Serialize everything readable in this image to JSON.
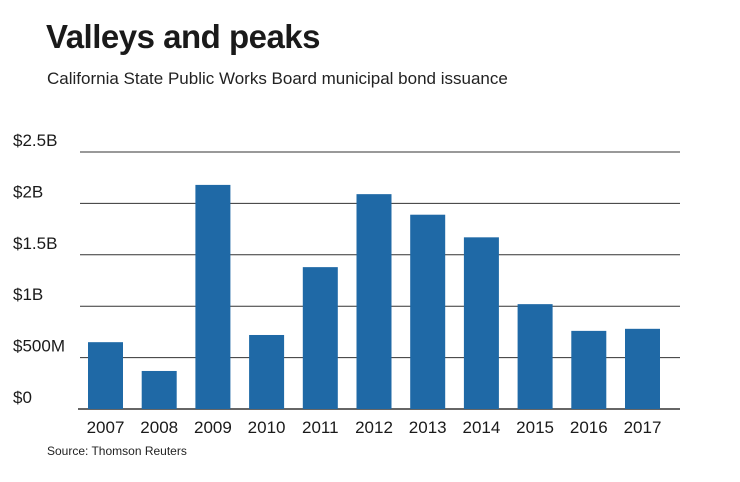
{
  "header": {
    "title": "Valleys and peaks",
    "subtitle": "California State Public Works Board municipal bond issuance"
  },
  "footer": {
    "source": "Source: Thomson Reuters"
  },
  "colors": {
    "bar": "#1f69a6",
    "grid": "#333333",
    "text": "#1a1a1a"
  },
  "chart_data": {
    "type": "bar",
    "title": "Valleys and peaks",
    "subtitle": "California State Public Works Board municipal bond issuance",
    "xlabel": "",
    "ylabel": "",
    "categories": [
      "2007",
      "2008",
      "2009",
      "2010",
      "2011",
      "2012",
      "2013",
      "2014",
      "2015",
      "2016",
      "2017"
    ],
    "values": [
      0.65,
      0.37,
      2.18,
      0.72,
      1.38,
      2.09,
      1.89,
      1.67,
      1.02,
      0.76,
      0.78
    ],
    "unit": "billions of dollars",
    "ylim": [
      0,
      2.5
    ],
    "yticks": [
      {
        "value": 2.5,
        "label": "$2.5B"
      },
      {
        "value": 2.0,
        "label": "$2B"
      },
      {
        "value": 1.5,
        "label": "$1.5B"
      },
      {
        "value": 1.0,
        "label": "$1B"
      },
      {
        "value": 0.5,
        "label": "$500M"
      },
      {
        "value": 0.0,
        "label": "$0"
      }
    ],
    "grid": true,
    "legend": "none"
  }
}
